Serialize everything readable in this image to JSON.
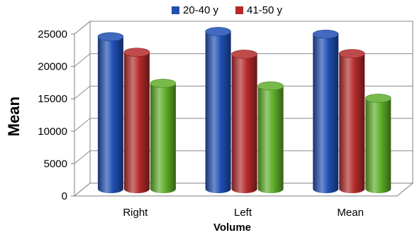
{
  "chart_data": {
    "type": "bar",
    "categories": [
      "Right",
      "Left",
      "Mean"
    ],
    "series": [
      {
        "name": "20-40 y",
        "values": [
          23500,
          24300,
          23900
        ],
        "color": "#1f4fb4"
      },
      {
        "name": "41-50 y",
        "values": [
          21100,
          20800,
          20900
        ],
        "color": "#b42a2a"
      },
      {
        "name": "",
        "values": [
          16300,
          15900,
          14000
        ],
        "color": "#5fae2a"
      }
    ],
    "title": "",
    "xlabel": "Volume",
    "ylabel": "Mean",
    "ylim": [
      0,
      25000
    ],
    "yticks": [
      0,
      5000,
      10000,
      15000,
      20000,
      25000
    ],
    "grid": true,
    "legend_position": "top",
    "style": "3d-cylinder"
  }
}
